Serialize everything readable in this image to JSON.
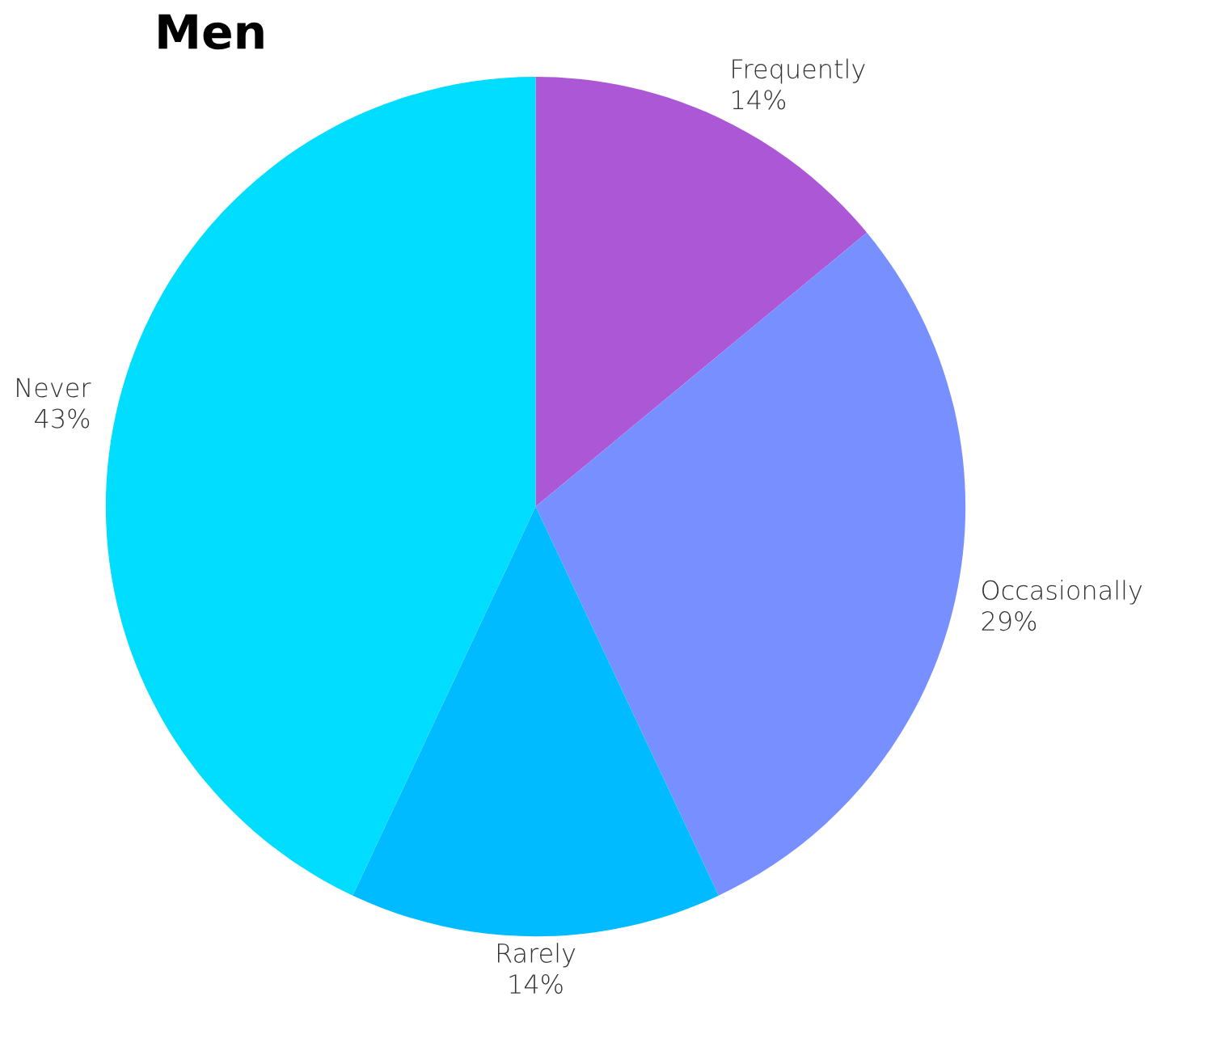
{
  "chart_data": {
    "type": "pie",
    "title": "Men",
    "categories": [
      "Frequently",
      "Occasionally",
      "Rarely",
      "Never"
    ],
    "values": [
      14,
      29,
      14,
      43
    ],
    "colors": [
      "#ab57d6",
      "#7890ff",
      "#00bbff",
      "#00ddff"
    ],
    "value_labels": [
      "14%",
      "29%",
      "14%",
      "43%"
    ]
  }
}
